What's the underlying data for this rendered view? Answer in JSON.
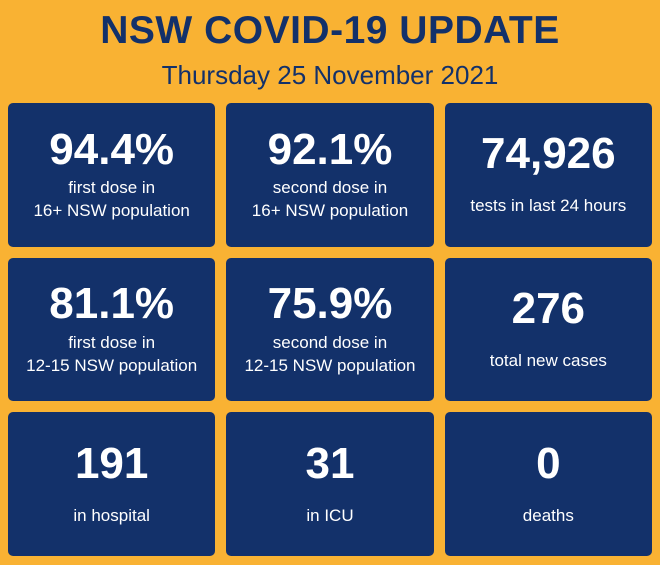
{
  "header": {
    "title": "NSW COVID-19 UPDATE",
    "date": "Thursday 25 November 2021"
  },
  "colors": {
    "background": "#F9B233",
    "tile": "#13316A",
    "tile_text": "#FFFFFF"
  },
  "tiles": [
    {
      "value": "94.4%",
      "line1": "first dose in",
      "line2": "16+ NSW population"
    },
    {
      "value": "92.1%",
      "line1": "second dose in",
      "line2": "16+ NSW population"
    },
    {
      "value": "74,926",
      "line1": "tests in last 24 hours",
      "line2": ""
    },
    {
      "value": "81.1%",
      "line1": "first dose in",
      "line2": "12-15 NSW population"
    },
    {
      "value": "75.9%",
      "line1": "second dose in",
      "line2": "12-15 NSW population"
    },
    {
      "value": "276",
      "line1": "total new cases",
      "line2": ""
    },
    {
      "value": "191",
      "line1": "in hospital",
      "line2": ""
    },
    {
      "value": "31",
      "line1": "in ICU",
      "line2": ""
    },
    {
      "value": "0",
      "line1": "deaths",
      "line2": ""
    }
  ],
  "chart_data": {
    "type": "table",
    "title": "NSW COVID-19 UPDATE",
    "subtitle": "Thursday 25 November 2021",
    "metrics": [
      {
        "label": "first dose in 16+ NSW population",
        "value": 94.4,
        "unit": "%"
      },
      {
        "label": "second dose in 16+ NSW population",
        "value": 92.1,
        "unit": "%"
      },
      {
        "label": "tests in last 24 hours",
        "value": 74926,
        "unit": "count"
      },
      {
        "label": "first dose in 12-15 NSW population",
        "value": 81.1,
        "unit": "%"
      },
      {
        "label": "second dose in 12-15 NSW population",
        "value": 75.9,
        "unit": "%"
      },
      {
        "label": "total new cases",
        "value": 276,
        "unit": "count"
      },
      {
        "label": "in hospital",
        "value": 191,
        "unit": "count"
      },
      {
        "label": "in ICU",
        "value": 31,
        "unit": "count"
      },
      {
        "label": "deaths",
        "value": 0,
        "unit": "count"
      }
    ]
  }
}
